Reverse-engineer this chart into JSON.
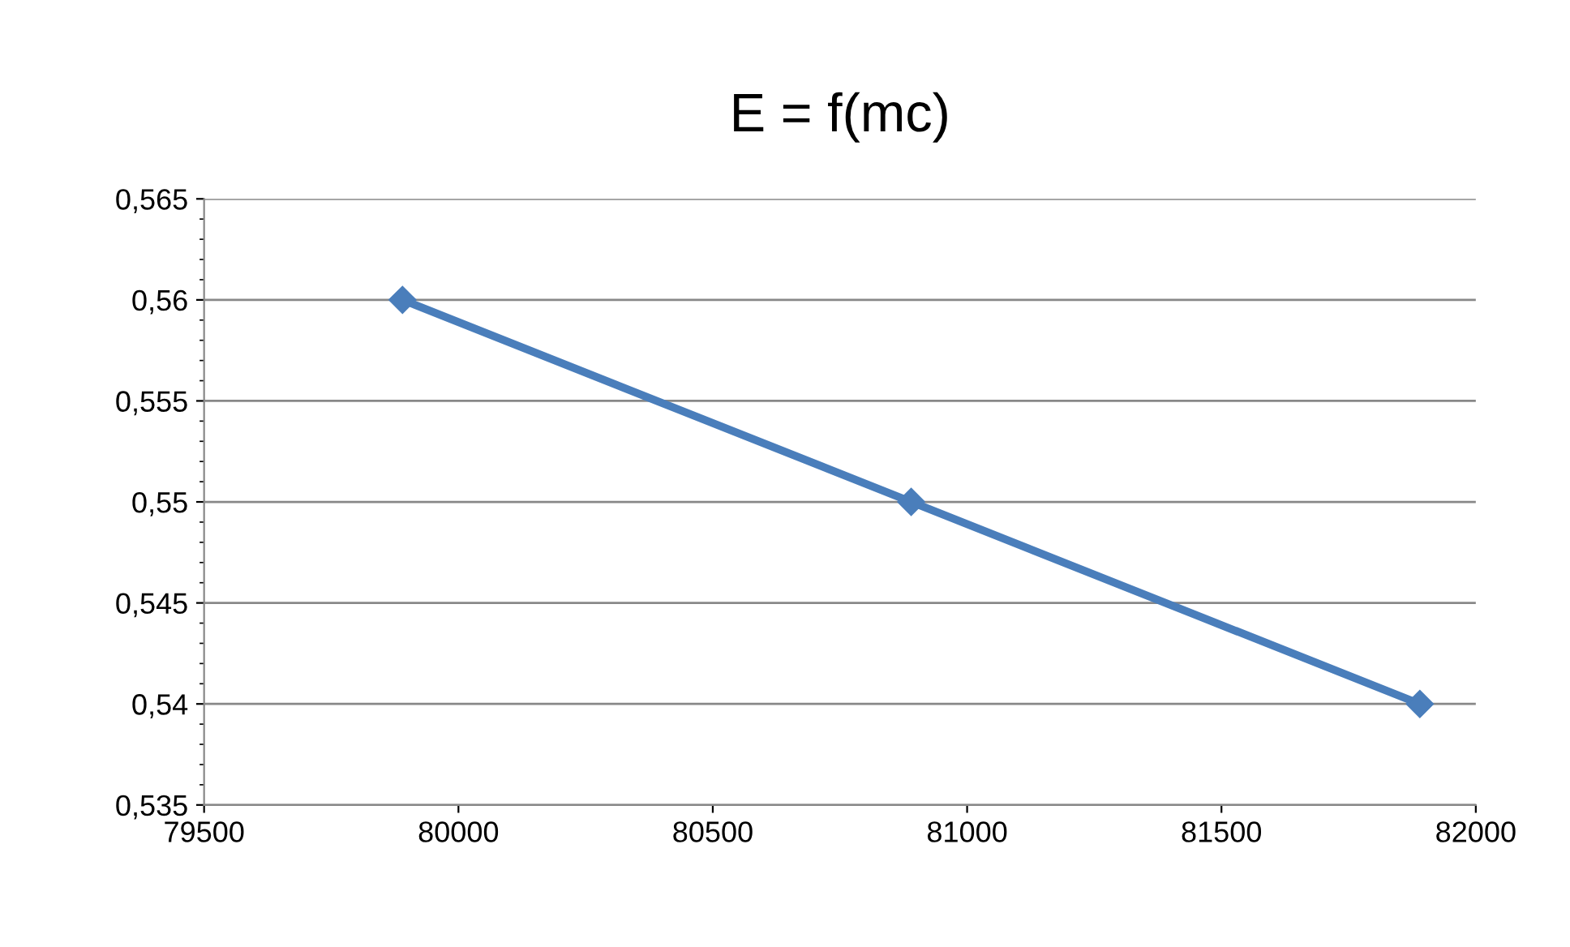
{
  "chart_data": {
    "type": "line",
    "title": "E = f(mc)",
    "x": [
      79890,
      80890,
      81890
    ],
    "series": [
      {
        "color": "#4a7ebb",
        "values": [
          0.56,
          0.55,
          0.54
        ]
      }
    ],
    "xlim": [
      79500,
      82000
    ],
    "xticks": [
      79500,
      80000,
      80500,
      81000,
      81500,
      82000
    ],
    "ylim": [
      0.535,
      0.565
    ],
    "yticks": [
      {
        "value": 0.535,
        "label": "0,535"
      },
      {
        "value": 0.54,
        "label": "0,54"
      },
      {
        "value": 0.545,
        "label": "0,545"
      },
      {
        "value": 0.55,
        "label": "0,55"
      },
      {
        "value": 0.555,
        "label": "0,555"
      },
      {
        "value": 0.56,
        "label": "0,56"
      },
      {
        "value": 0.565,
        "label": "0,565"
      }
    ],
    "grid": "y",
    "marker": "diamond",
    "line_style": "solid",
    "legend": false
  }
}
